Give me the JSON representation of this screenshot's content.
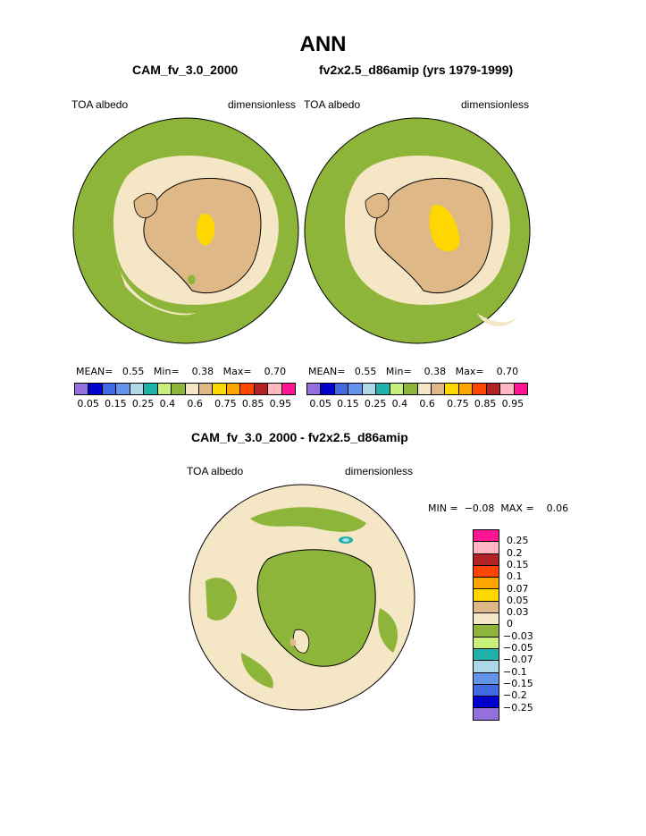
{
  "header": {
    "title": "ANN"
  },
  "panel_left": {
    "title": "CAM_fv_3.0_2000",
    "var": "TOA albedo",
    "units": "dimensionless",
    "stats": {
      "mean_label": "MEAN=",
      "mean": "0.55",
      "min_label": "Min=",
      "min": "0.38",
      "max_label": "Max=",
      "max": "0.70"
    }
  },
  "panel_right": {
    "title": "fv2x2.5_d86amip (yrs 1979-1999)",
    "var": "TOA albedo",
    "units": "dimensionless",
    "stats": {
      "mean_label": "MEAN=",
      "mean": "0.55",
      "min_label": "Min=",
      "min": "0.38",
      "max_label": "Max=",
      "max": "0.70"
    }
  },
  "panel_diff": {
    "title": "CAM_fv_3.0_2000 - fv2x2.5_d86amip",
    "var": "TOA albedo",
    "units": "dimensionless",
    "stats": {
      "min_label": "MIN =",
      "min": "−0.08",
      "max_label": "MAX =",
      "max": "0.06"
    }
  },
  "colorbar_top": {
    "colors": [
      "#9370db",
      "#0000cd",
      "#4169e1",
      "#6495ed",
      "#add8e6",
      "#20b2aa",
      "#c6f07a",
      "#8db53a",
      "#f5e6c5",
      "#deb887",
      "#ffd700",
      "#ffa500",
      "#ff4500",
      "#b22222",
      "#ffb6c1",
      "#ff1493"
    ],
    "ticks": [
      "0.05",
      "0.15",
      "0.25",
      "0.4",
      "0.6",
      "0.75",
      "0.85",
      "0.95"
    ]
  },
  "colorbar_diff": {
    "colors": [
      "#ff1493",
      "#ffb6c1",
      "#b22222",
      "#ff4500",
      "#ffa500",
      "#ffd700",
      "#deb887",
      "#f5e6c5",
      "#8db53a",
      "#c6f07a",
      "#20b2aa",
      "#add8e6",
      "#6495ed",
      "#4169e1",
      "#0000cd",
      "#9370db"
    ],
    "ticks": [
      "0.25",
      "0.2",
      "0.15",
      "0.1",
      "0.07",
      "0.05",
      "0.03",
      "0",
      "−0.03",
      "−0.05",
      "−0.07",
      "−0.1",
      "−0.15",
      "−0.2",
      "−0.25"
    ]
  },
  "colors": {
    "ocean_green": "#8db53a",
    "pale": "#f5e6c5",
    "tan": "#deb887",
    "yellow": "#ffd700"
  }
}
